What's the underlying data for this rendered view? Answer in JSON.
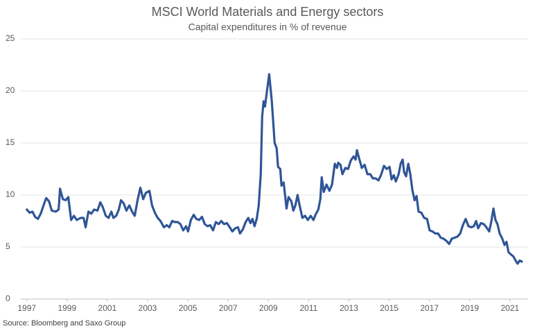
{
  "chart_data": {
    "type": "line",
    "title": "MSCI World Materials and Energy sectors",
    "subtitle": "Capital expenditures in % of revenue",
    "source": "Source: Bloomberg and Saxo Group",
    "grid": true,
    "xlim": [
      1996.7,
      2021.9
    ],
    "xticks": [
      1997,
      1999,
      2001,
      2003,
      2005,
      2007,
      2009,
      2011,
      2013,
      2015,
      2017,
      2019,
      2021
    ],
    "ylim": [
      0,
      25
    ],
    "yticks": [
      0,
      5,
      10,
      15,
      20,
      25
    ],
    "x": [
      1997.0,
      1997.14,
      1997.28,
      1997.41,
      1997.55,
      1997.69,
      1997.83,
      1997.96,
      1998.1,
      1998.24,
      1998.44,
      1998.58,
      1998.65,
      1998.79,
      1998.93,
      1999.06,
      1999.2,
      1999.34,
      1999.48,
      1999.68,
      1999.82,
      1999.92,
      2000.06,
      2000.2,
      2000.34,
      2000.51,
      2000.65,
      2000.78,
      2000.92,
      2001.06,
      2001.2,
      2001.3,
      2001.44,
      2001.57,
      2001.68,
      2001.81,
      2001.95,
      2002.09,
      2002.23,
      2002.36,
      2002.5,
      2002.64,
      2002.78,
      2002.91,
      2003.09,
      2003.22,
      2003.36,
      2003.5,
      2003.64,
      2003.81,
      2003.95,
      2004.08,
      2004.22,
      2004.36,
      2004.5,
      2004.63,
      2004.77,
      2004.91,
      2005.01,
      2005.15,
      2005.29,
      2005.42,
      2005.56,
      2005.7,
      2005.84,
      2005.98,
      2006.11,
      2006.25,
      2006.39,
      2006.53,
      2006.66,
      2006.8,
      2006.94,
      2007.08,
      2007.21,
      2007.35,
      2007.49,
      2007.59,
      2007.73,
      2007.87,
      2008.0,
      2008.11,
      2008.21,
      2008.31,
      2008.42,
      2008.52,
      2008.62,
      2008.69,
      2008.76,
      2008.83,
      2008.93,
      2009.04,
      2009.17,
      2009.31,
      2009.41,
      2009.48,
      2009.59,
      2009.65,
      2009.76,
      2009.9,
      2010.0,
      2010.14,
      2010.24,
      2010.34,
      2010.45,
      2010.55,
      2010.69,
      2010.82,
      2010.96,
      2011.1,
      2011.24,
      2011.34,
      2011.48,
      2011.58,
      2011.65,
      2011.75,
      2011.89,
      2012.03,
      2012.16,
      2012.3,
      2012.41,
      2012.47,
      2012.58,
      2012.68,
      2012.82,
      2012.96,
      2013.09,
      2013.23,
      2013.33,
      2013.4,
      2013.51,
      2013.64,
      2013.78,
      2013.92,
      2014.06,
      2014.19,
      2014.33,
      2014.47,
      2014.61,
      2014.74,
      2014.88,
      2015.02,
      2015.12,
      2015.23,
      2015.33,
      2015.47,
      2015.57,
      2015.67,
      2015.74,
      2015.84,
      2015.95,
      2016.05,
      2016.15,
      2016.26,
      2016.36,
      2016.46,
      2016.6,
      2016.74,
      2016.88,
      2017.01,
      2017.15,
      2017.29,
      2017.43,
      2017.56,
      2017.7,
      2017.84,
      2017.98,
      2018.11,
      2018.25,
      2018.39,
      2018.53,
      2018.66,
      2018.8,
      2018.94,
      2019.08,
      2019.21,
      2019.32,
      2019.42,
      2019.56,
      2019.7,
      2019.83,
      2019.97,
      2020.07,
      2020.18,
      2020.28,
      2020.38,
      2020.49,
      2020.62,
      2020.73,
      2020.83,
      2020.93,
      2021.04,
      2021.17,
      2021.28,
      2021.38,
      2021.48,
      2021.59
    ],
    "series": [
      {
        "name": "Capex % of revenue",
        "color": "#2f5597",
        "values": [
          8.6,
          8.3,
          8.4,
          7.9,
          7.7,
          8.2,
          9.0,
          9.7,
          9.4,
          8.5,
          8.4,
          8.6,
          10.6,
          9.6,
          9.5,
          9.8,
          7.6,
          8.0,
          7.6,
          7.8,
          7.8,
          6.9,
          8.4,
          8.2,
          8.6,
          8.5,
          9.3,
          8.8,
          8.0,
          7.8,
          8.4,
          7.8,
          8.0,
          8.6,
          9.5,
          9.2,
          8.5,
          9.0,
          8.4,
          8.0,
          9.5,
          10.7,
          9.6,
          10.2,
          10.4,
          9.0,
          8.3,
          7.8,
          7.5,
          6.9,
          7.1,
          6.9,
          7.5,
          7.4,
          7.4,
          7.2,
          6.6,
          7.0,
          6.5,
          7.6,
          8.1,
          7.7,
          7.6,
          7.9,
          7.2,
          7.0,
          7.1,
          6.6,
          7.4,
          7.2,
          7.5,
          7.2,
          7.3,
          6.9,
          6.5,
          6.8,
          6.9,
          6.3,
          6.7,
          7.4,
          7.8,
          7.3,
          7.7,
          7.0,
          7.7,
          9.0,
          12.0,
          17.5,
          19.0,
          18.5,
          20.0,
          21.6,
          19.0,
          15.0,
          14.5,
          12.7,
          12.5,
          10.9,
          11.2,
          8.7,
          9.8,
          9.4,
          8.5,
          9.0,
          10.0,
          9.0,
          7.8,
          8.0,
          7.6,
          8.0,
          7.6,
          8.1,
          8.6,
          9.6,
          11.7,
          10.3,
          11.0,
          10.4,
          11.0,
          13.0,
          12.6,
          13.1,
          12.9,
          12.0,
          12.6,
          12.5,
          13.3,
          13.7,
          13.4,
          14.3,
          13.5,
          12.6,
          12.9,
          12.0,
          12.0,
          11.6,
          11.6,
          11.4,
          12.0,
          12.8,
          12.5,
          12.7,
          11.5,
          11.9,
          11.3,
          12.0,
          13.0,
          13.4,
          12.2,
          11.8,
          13.0,
          12.0,
          10.5,
          9.5,
          9.9,
          8.4,
          8.3,
          7.8,
          7.7,
          6.6,
          6.5,
          6.3,
          6.3,
          5.9,
          5.8,
          5.6,
          5.3,
          5.8,
          5.9,
          6.0,
          6.3,
          7.1,
          7.7,
          7.0,
          6.9,
          7.0,
          7.5,
          6.8,
          7.3,
          7.2,
          6.9,
          6.5,
          7.4,
          8.7,
          7.6,
          7.2,
          6.3,
          5.8,
          5.2,
          5.5,
          4.5,
          4.3,
          4.1,
          3.7,
          3.4,
          3.7,
          3.6
        ]
      }
    ]
  }
}
